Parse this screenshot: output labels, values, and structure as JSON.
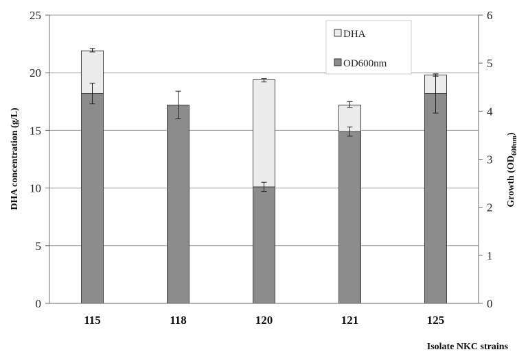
{
  "chart_data": {
    "type": "bar",
    "stacked": true,
    "categories": [
      "115",
      "118",
      "120",
      "121",
      "125"
    ],
    "xlabel": "Isolate NKC strains",
    "ylabel": "DHA concentration (g/L)",
    "ylabel_right": {
      "main": "Growth (OD",
      "sub": "600nm",
      "end": ")"
    },
    "ylim": [
      0,
      25
    ],
    "ylim_right": [
      0,
      6
    ],
    "yticks": [
      "0",
      "5",
      "10",
      "15",
      "20",
      "25"
    ],
    "yticks_right": [
      "0",
      "1",
      "2",
      "3",
      "4",
      "5",
      "6"
    ],
    "grid": true,
    "legend_position": "top-right",
    "series": [
      {
        "name": "OD600nm",
        "color": "#8c8c8c",
        "values": [
          18.2,
          17.2,
          10.1,
          14.9,
          18.2
        ],
        "err_low": [
          17.3,
          16.0,
          9.7,
          14.5,
          16.5
        ],
        "err_high": [
          19.1,
          18.4,
          10.5,
          15.3,
          19.8
        ]
      },
      {
        "name": "DHA",
        "color": "#ececec",
        "values": [
          3.7,
          0,
          9.3,
          2.3,
          1.6
        ],
        "err_low": [
          21.8,
          null,
          19.2,
          17.0,
          19.7
        ],
        "err_high": [
          22.1,
          null,
          19.5,
          17.5,
          19.9
        ]
      }
    ]
  }
}
